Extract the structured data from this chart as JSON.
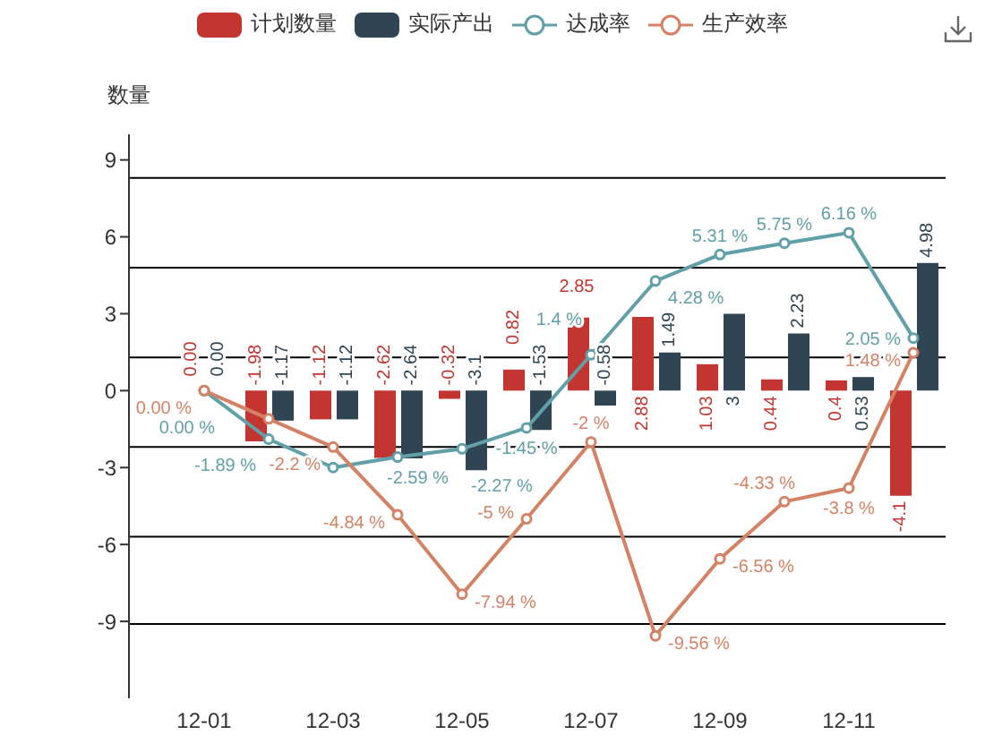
{
  "chart_data": {
    "type": "bar",
    "ylabel": "数量",
    "categories": [
      "12-01",
      null,
      "12-03",
      null,
      "12-05",
      null,
      "12-07",
      null,
      "12-09",
      null,
      "12-11",
      null
    ],
    "series": [
      {
        "name": "计划数量",
        "color": "#c23531",
        "values": [
          0,
          -1.98,
          -1.12,
          -2.62,
          -0.32,
          0.82,
          2.85,
          2.88,
          1.03,
          0.44,
          0.4,
          -4.1
        ],
        "value_labels": [
          "0.00",
          "-1.98",
          "-1.12",
          "-2.62",
          "-0.32",
          "0.82",
          "2.85",
          "2.88",
          "1.03",
          "0.44",
          "0.4",
          "-4.1"
        ]
      },
      {
        "name": "实际产出",
        "color": "#2f4554",
        "values": [
          0,
          -1.17,
          -1.12,
          -2.64,
          -3.1,
          -1.53,
          -0.58,
          1.49,
          3,
          2.23,
          0.53,
          4.98
        ],
        "value_labels": [
          "0.00",
          "-1.17",
          "-1.12",
          "-2.64",
          "-3.1",
          "-1.53",
          "-0.58",
          "1.49",
          "3",
          "2.23",
          "0.53",
          "4.98"
        ]
      },
      {
        "name": "达成率",
        "type": "line",
        "color": "#61a0a8",
        "values": [
          0,
          -1.89,
          -3,
          -2.59,
          -2.27,
          -1.45,
          1.4,
          4.28,
          5.31,
          5.75,
          6.16,
          2.05
        ],
        "value_labels": [
          "0.00 %",
          "-1.89 %",
          null,
          "-2.59 %",
          "-2.27 %",
          "-1.45 %",
          "1.4 %",
          "4.28 %",
          "5.31 %",
          "5.75 %",
          "6.16 %",
          "2.05 %"
        ]
      },
      {
        "name": "生产效率",
        "type": "line",
        "color": "#d48265",
        "values": [
          0,
          -1.1,
          -2.2,
          -4.84,
          -7.94,
          -5,
          -2,
          -9.56,
          -6.56,
          -4.33,
          -3.8,
          1.48
        ],
        "value_labels": [
          "0.00 %",
          null,
          "-2.2 %",
          "-4.84 %",
          "-7.94 %",
          "-5 %",
          "-2 %",
          "-9.56 %",
          "-6.56 %",
          "-4.33 %",
          "-3.8 %",
          "1.48 %"
        ]
      }
    ],
    "ylim": [
      -12,
      10
    ],
    "yticks": [
      -9,
      -6,
      -3,
      0,
      3,
      6,
      9
    ],
    "legend": "top",
    "marker": "circle",
    "ref_lines": [
      {
        "axis": "y",
        "value": 8.3,
        "color": "#000000"
      },
      {
        "axis": "y",
        "value": 4.8,
        "color": "#000000"
      },
      {
        "axis": "y",
        "value": 1.3,
        "color": "#000000"
      },
      {
        "axis": "y",
        "value": -2.2,
        "color": "#000000"
      },
      {
        "axis": "y",
        "value": -5.7,
        "color": "#000000"
      },
      {
        "axis": "y",
        "value": -9.1,
        "color": "#000000"
      }
    ]
  }
}
